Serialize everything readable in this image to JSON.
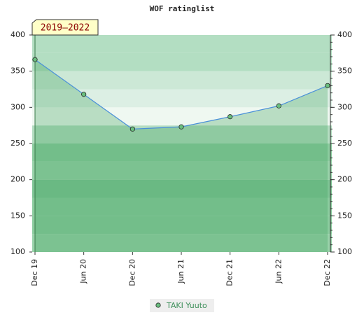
{
  "chart_data": {
    "type": "line",
    "title": "WOF ratinglist",
    "annotation": "2019–2022",
    "categories": [
      "Dec 19",
      "Jun 20",
      "Dec 20",
      "Jun 21",
      "Dec 21",
      "Jun 22",
      "Dec 22"
    ],
    "series": [
      {
        "name": "TAKI Yuuto",
        "color": "#3d8f5a",
        "values": [
          366,
          318,
          270,
          273,
          287,
          302,
          330
        ]
      }
    ],
    "ylim": [
      100,
      400
    ],
    "yticks": [
      100,
      150,
      200,
      250,
      300,
      350,
      400
    ]
  }
}
